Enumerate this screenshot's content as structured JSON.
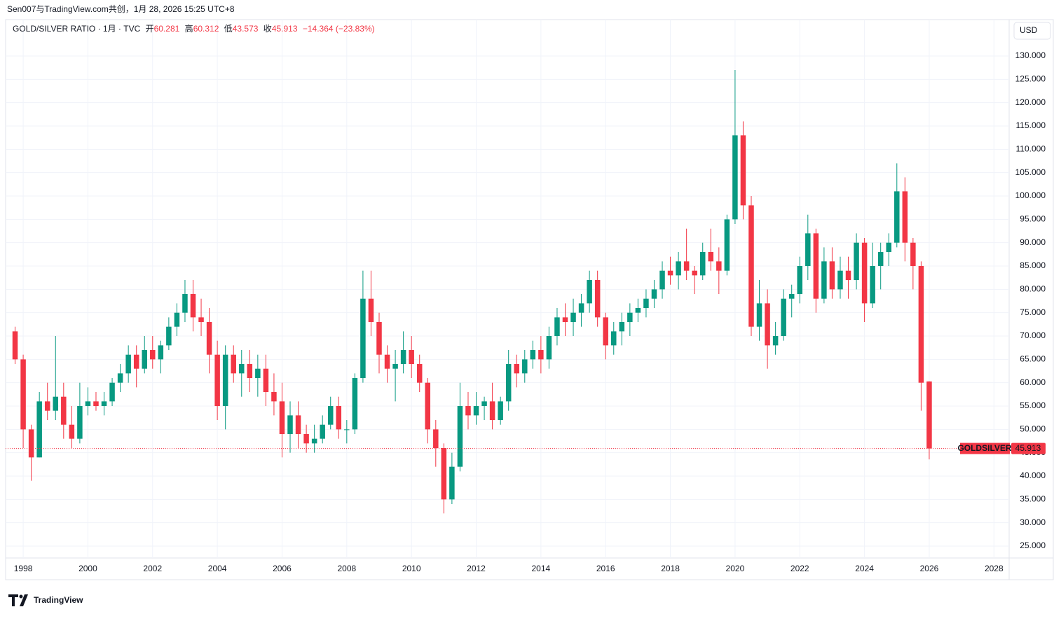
{
  "chart_data": {
    "type": "candlestick",
    "credit": "Sen007与TradingView.com共创，1月 28, 2026 15:25 UTC+8",
    "symbol": "GOLD/SILVER RATIO · 1月 · TVC",
    "open_label": "开",
    "high_label": "高",
    "low_label": "低",
    "close_label": "收",
    "change_label": "−14.364 (−23.83%)",
    "currency": "USD",
    "ticker": "GOLDSILVER",
    "brand": "TradingView",
    "up_color": "#089981",
    "down_color": "#f23645",
    "grid": true,
    "x": [
      1997.75,
      1998,
      1998.25,
      1998.5,
      1998.75,
      1999,
      1999.25,
      1999.5,
      1999.75,
      2000,
      2000.25,
      2000.5,
      2000.75,
      2001,
      2001.25,
      2001.5,
      2001.75,
      2002,
      2002.25,
      2002.5,
      2002.75,
      2003,
      2003.25,
      2003.5,
      2003.75,
      2004,
      2004.25,
      2004.5,
      2004.75,
      2005,
      2005.25,
      2005.5,
      2005.75,
      2006,
      2006.25,
      2006.5,
      2006.75,
      2007,
      2007.25,
      2007.5,
      2007.75,
      2008,
      2008.25,
      2008.5,
      2008.75,
      2009,
      2009.25,
      2009.5,
      2009.75,
      2010,
      2010.25,
      2010.5,
      2010.75,
      2011,
      2011.25,
      2011.5,
      2011.75,
      2012,
      2012.25,
      2012.5,
      2012.75,
      2013,
      2013.25,
      2013.5,
      2013.75,
      2014,
      2014.25,
      2014.5,
      2014.75,
      2015,
      2015.25,
      2015.5,
      2015.75,
      2016,
      2016.25,
      2016.5,
      2016.75,
      2017,
      2017.25,
      2017.5,
      2017.75,
      2018,
      2018.25,
      2018.5,
      2018.75,
      2019,
      2019.25,
      2019.5,
      2019.75,
      2020,
      2020.25,
      2020.5,
      2020.75,
      2021,
      2021.25,
      2021.5,
      2021.75,
      2022,
      2022.25,
      2022.5,
      2022.75,
      2023,
      2023.25,
      2023.5,
      2023.75,
      2024,
      2024.25,
      2024.5,
      2024.75,
      2025,
      2025.25,
      2025.5,
      2025.75,
      2026
    ],
    "open": [
      71,
      65,
      50,
      44,
      56,
      54,
      57,
      51,
      48,
      55,
      56,
      55,
      56,
      60,
      62,
      66,
      63,
      67,
      65,
      68,
      72,
      75,
      79,
      74,
      73,
      66,
      55,
      66,
      62,
      64,
      61,
      63,
      58,
      56,
      49,
      53,
      49,
      47,
      48,
      51,
      55,
      50,
      50,
      61,
      78,
      73,
      66,
      63,
      64,
      67,
      64,
      60,
      50,
      46,
      35,
      42,
      55,
      53,
      55,
      56,
      52,
      56,
      64,
      62,
      65,
      67,
      65,
      70,
      74,
      73,
      75,
      77,
      82,
      74,
      68,
      71,
      73,
      75,
      76,
      78,
      80,
      84,
      83,
      86,
      84,
      83,
      88,
      86,
      84,
      95,
      113,
      98,
      72,
      77,
      68,
      70,
      78,
      79,
      85,
      92,
      78,
      86,
      80,
      84,
      82,
      90,
      77,
      85,
      88,
      90,
      101,
      90,
      85,
      60.281
    ],
    "high": [
      72,
      66,
      51,
      58,
      60,
      70,
      60,
      55,
      60,
      59,
      58,
      58,
      61,
      64,
      68,
      68,
      70,
      70,
      69,
      74,
      77,
      82,
      82,
      78,
      76,
      69,
      68,
      68,
      67,
      67,
      66,
      66,
      62,
      60,
      56,
      56,
      51,
      51,
      53,
      57,
      57,
      52,
      62,
      84,
      84,
      75,
      68,
      67,
      71,
      70,
      66,
      61,
      52,
      47,
      45,
      60,
      58,
      58,
      57,
      60,
      57,
      67,
      66,
      67,
      69,
      70,
      72,
      76,
      77,
      78,
      79,
      84,
      84,
      75,
      73,
      75,
      77,
      78,
      80,
      82,
      86,
      87,
      88,
      93,
      85,
      90,
      93,
      89,
      96,
      127,
      116,
      100,
      82,
      80,
      73,
      80,
      81,
      87,
      96,
      93,
      89,
      89,
      87,
      87,
      92,
      91,
      90,
      90,
      92,
      107,
      104,
      91,
      86,
      60.312
    ],
    "low": [
      64,
      46,
      39,
      44,
      52,
      52,
      48,
      46,
      47,
      53,
      54,
      53,
      55,
      58,
      60,
      59,
      62,
      63,
      62,
      67,
      70,
      73,
      71,
      70,
      62,
      52,
      50,
      60,
      57,
      58,
      57,
      55,
      53,
      44,
      45,
      46,
      45,
      45,
      47,
      50,
      48,
      47,
      49,
      60,
      70,
      62,
      60,
      56,
      62,
      61,
      58,
      47,
      42,
      32,
      34,
      41,
      50,
      51,
      52,
      50,
      51,
      54,
      59,
      60,
      63,
      62,
      63,
      68,
      70,
      70,
      72,
      75,
      72,
      65,
      66,
      68,
      70,
      73,
      74,
      76,
      78,
      81,
      80,
      82,
      79,
      82,
      84,
      79,
      83,
      94,
      95,
      70,
      69,
      63,
      66,
      69,
      74,
      77,
      82,
      75,
      77,
      78,
      78,
      78,
      80,
      73,
      76,
      80,
      85,
      89,
      86,
      80,
      54,
      43.573
    ],
    "close": [
      65,
      50,
      44,
      56,
      54,
      57,
      51,
      48,
      55,
      56,
      55,
      56,
      60,
      62,
      66,
      63,
      67,
      65,
      68,
      72,
      75,
      79,
      74,
      73,
      66,
      55,
      66,
      62,
      64,
      61,
      63,
      58,
      56,
      49,
      53,
      49,
      47,
      48,
      51,
      55,
      50,
      50,
      61,
      78,
      73,
      66,
      63,
      64,
      67,
      64,
      60,
      50,
      46,
      35,
      42,
      55,
      53,
      55,
      56,
      52,
      56,
      64,
      62,
      65,
      67,
      65,
      70,
      74,
      73,
      75,
      77,
      82,
      74,
      68,
      71,
      73,
      75,
      76,
      78,
      80,
      84,
      83,
      86,
      84,
      83,
      88,
      86,
      84,
      95,
      113,
      98,
      72,
      77,
      68,
      70,
      78,
      79,
      85,
      92,
      78,
      86,
      80,
      84,
      82,
      90,
      77,
      85,
      88,
      90,
      101,
      90,
      85,
      60,
      45.913
    ],
    "xlim": [
      1997.5,
      2028.47
    ],
    "xticks": [
      1998,
      2000,
      2002,
      2004,
      2006,
      2008,
      2010,
      2012,
      2014,
      2016,
      2018,
      2020,
      2022,
      2024,
      2026,
      2028
    ],
    "ylim": [
      22.45,
      137.5
    ],
    "yticks": [
      {
        "value": 25,
        "label": "25.000"
      },
      {
        "value": 30,
        "label": "30.000"
      },
      {
        "value": 35,
        "label": "35.000"
      },
      {
        "value": 40,
        "label": "40.000"
      },
      {
        "value": 45,
        "label": "45.000"
      },
      {
        "value": 50,
        "label": "50.000"
      },
      {
        "value": 55,
        "label": "55.000"
      },
      {
        "value": 60,
        "label": "60.000"
      },
      {
        "value": 65,
        "label": "65.000"
      },
      {
        "value": 70,
        "label": "70.000"
      },
      {
        "value": 75,
        "label": "75.000"
      },
      {
        "value": 80,
        "label": "80.000"
      },
      {
        "value": 85,
        "label": "85.000"
      },
      {
        "value": 90,
        "label": "90.000"
      },
      {
        "value": 95,
        "label": "95.000"
      },
      {
        "value": 100,
        "label": "100.000"
      },
      {
        "value": 105,
        "label": "105.000"
      },
      {
        "value": 110,
        "label": "110.000"
      },
      {
        "value": 115,
        "label": "115.000"
      },
      {
        "value": 120,
        "label": "120.000"
      },
      {
        "value": 125,
        "label": "125.000"
      },
      {
        "value": 130,
        "label": "130.000"
      }
    ]
  }
}
